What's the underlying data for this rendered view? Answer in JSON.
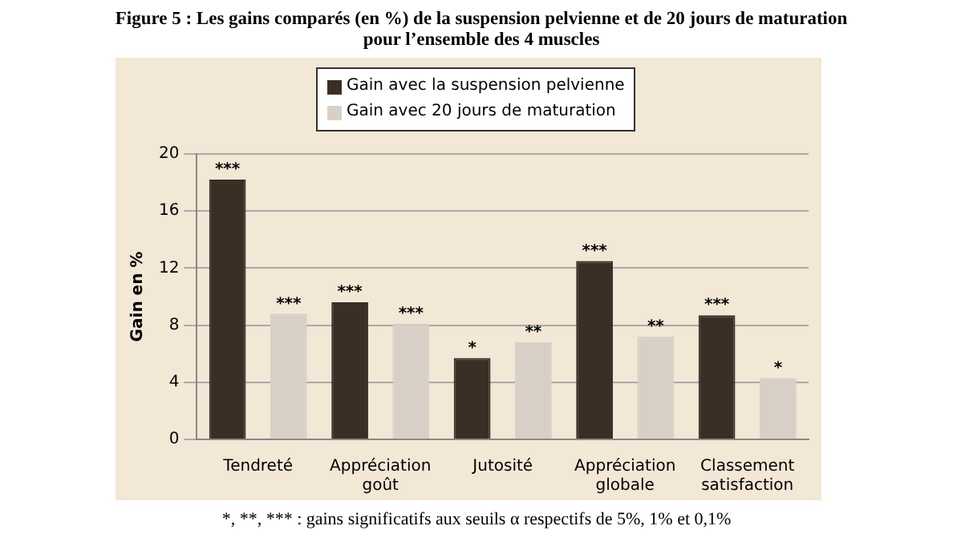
{
  "chart_data": {
    "type": "bar",
    "title": "Figure 5 : Les gains comparés (en %) de la suspension pelvienne et de 20 jours de maturation pour l’ensemble des 4 muscles",
    "ylabel": "Gain en %",
    "categories": [
      "Tendreté",
      "Appréciation goût",
      "Jutosité",
      "Appréciation globale",
      "Classement satisfaction"
    ],
    "series": [
      {
        "name": "Gain avec la suspension pelvienne",
        "color": "#3a2e25",
        "values": [
          18.2,
          9.6,
          5.7,
          12.5,
          8.7
        ],
        "value_labels": [
          "***",
          "***",
          "*",
          "***",
          "***"
        ]
      },
      {
        "name": "Gain avec 20 jours de maturation",
        "color": "#d8d0c6",
        "values": [
          8.8,
          8.1,
          6.8,
          7.2,
          4.3
        ],
        "value_labels": [
          "***",
          "***",
          "**",
          "**",
          "*"
        ]
      }
    ],
    "ylim": [
      0,
      20
    ],
    "yticks": [
      0,
      4,
      8,
      12,
      16,
      20
    ],
    "grid": "y",
    "legend": "top",
    "annotations": [
      "*, **, *** : gains significatifs aux seuils α respectifs de 5%, 1% et 0,1%"
    ]
  }
}
